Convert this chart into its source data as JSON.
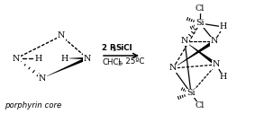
{
  "bg_color": "#ffffff",
  "fig_width": 2.83,
  "fig_height": 1.27,
  "dpi": 100,
  "porphyrin_label": "porphyrin core",
  "arrow_text_top": "2 R",
  "arrow_text_top_sub": "3",
  "arrow_text_top_rest": "SiCl",
  "arrow_text_bot": "CHCl",
  "arrow_text_bot_sub": "3",
  "arrow_text_bot_rest": ", 25ºC"
}
